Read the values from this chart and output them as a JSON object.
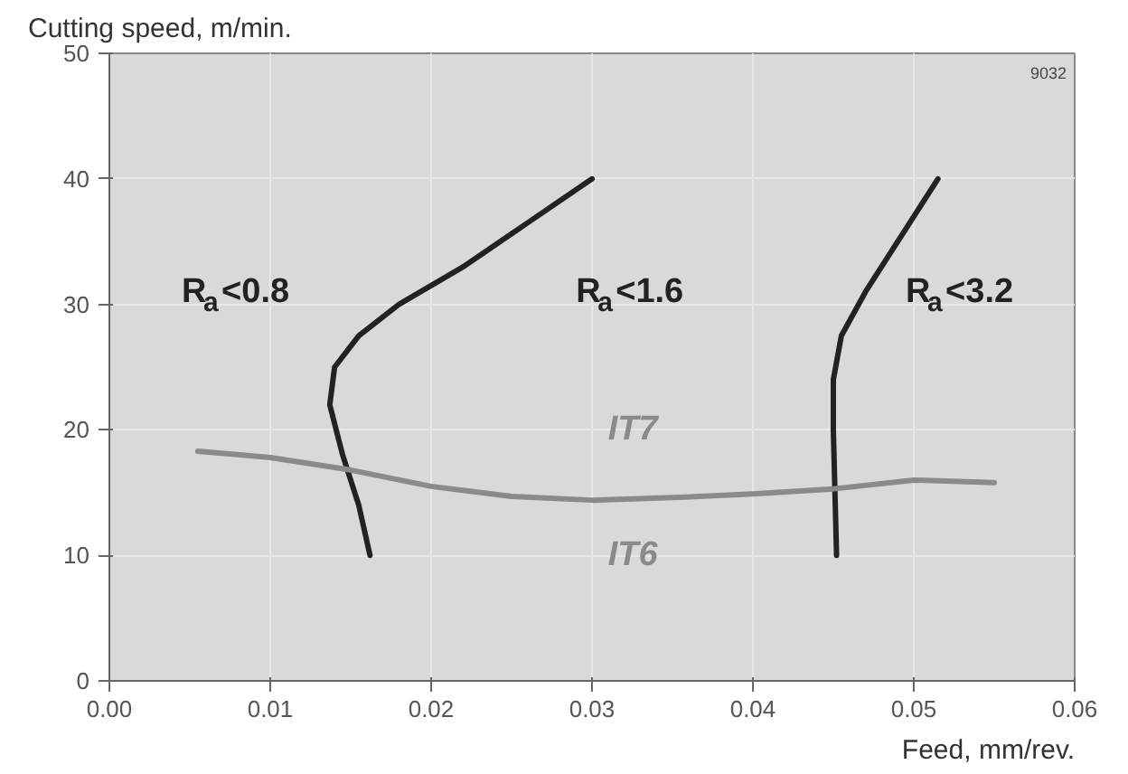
{
  "chart_data": {
    "type": "line",
    "xlabel": "Feed, mm/rev.",
    "ylabel": "Cutting speed, m/min.",
    "xlim": [
      0,
      0.06
    ],
    "ylim": [
      0,
      50
    ],
    "xticks": [
      {
        "value": 0,
        "label": "0.00"
      },
      {
        "value": 0.01,
        "label": "0.01"
      },
      {
        "value": 0.02,
        "label": "0.02"
      },
      {
        "value": 0.03,
        "label": "0.03"
      },
      {
        "value": 0.04,
        "label": "0.04"
      },
      {
        "value": 0.05,
        "label": "0.05"
      },
      {
        "value": 0.06,
        "label": "0.06"
      }
    ],
    "yticks": [
      0,
      10,
      20,
      30,
      40,
      50
    ],
    "grid": true,
    "marker": "none",
    "line_style": "solid",
    "series": [
      {
        "color": "#222222",
        "x": [
          0.0162,
          0.0155,
          0.0145,
          0.0137,
          0.014,
          0.0155,
          0.018,
          0.022,
          0.026,
          0.03
        ],
        "values": [
          10,
          14,
          18,
          22,
          25,
          27.5,
          30,
          33,
          36.5,
          40
        ]
      },
      {
        "color": "#222222",
        "x": [
          0.0452,
          0.0451,
          0.045,
          0.045,
          0.0455,
          0.047,
          0.049,
          0.0515
        ],
        "values": [
          10,
          15,
          20,
          24,
          27.5,
          31,
          35,
          40
        ]
      },
      {
        "color": "#8a8a8a",
        "x": [
          0.0055,
          0.01,
          0.015,
          0.02,
          0.025,
          0.03,
          0.035,
          0.04,
          0.045,
          0.05,
          0.055
        ],
        "values": [
          18.3,
          17.8,
          16.8,
          15.5,
          14.7,
          14.4,
          14.6,
          14.9,
          15.3,
          16,
          15.8
        ]
      }
    ],
    "annotations": [
      "R$_{a}$<0.8",
      "R$_{a}$<1.6",
      "R$_{a}$<3.2",
      "IT7",
      "IT6",
      "9032"
    ]
  }
}
